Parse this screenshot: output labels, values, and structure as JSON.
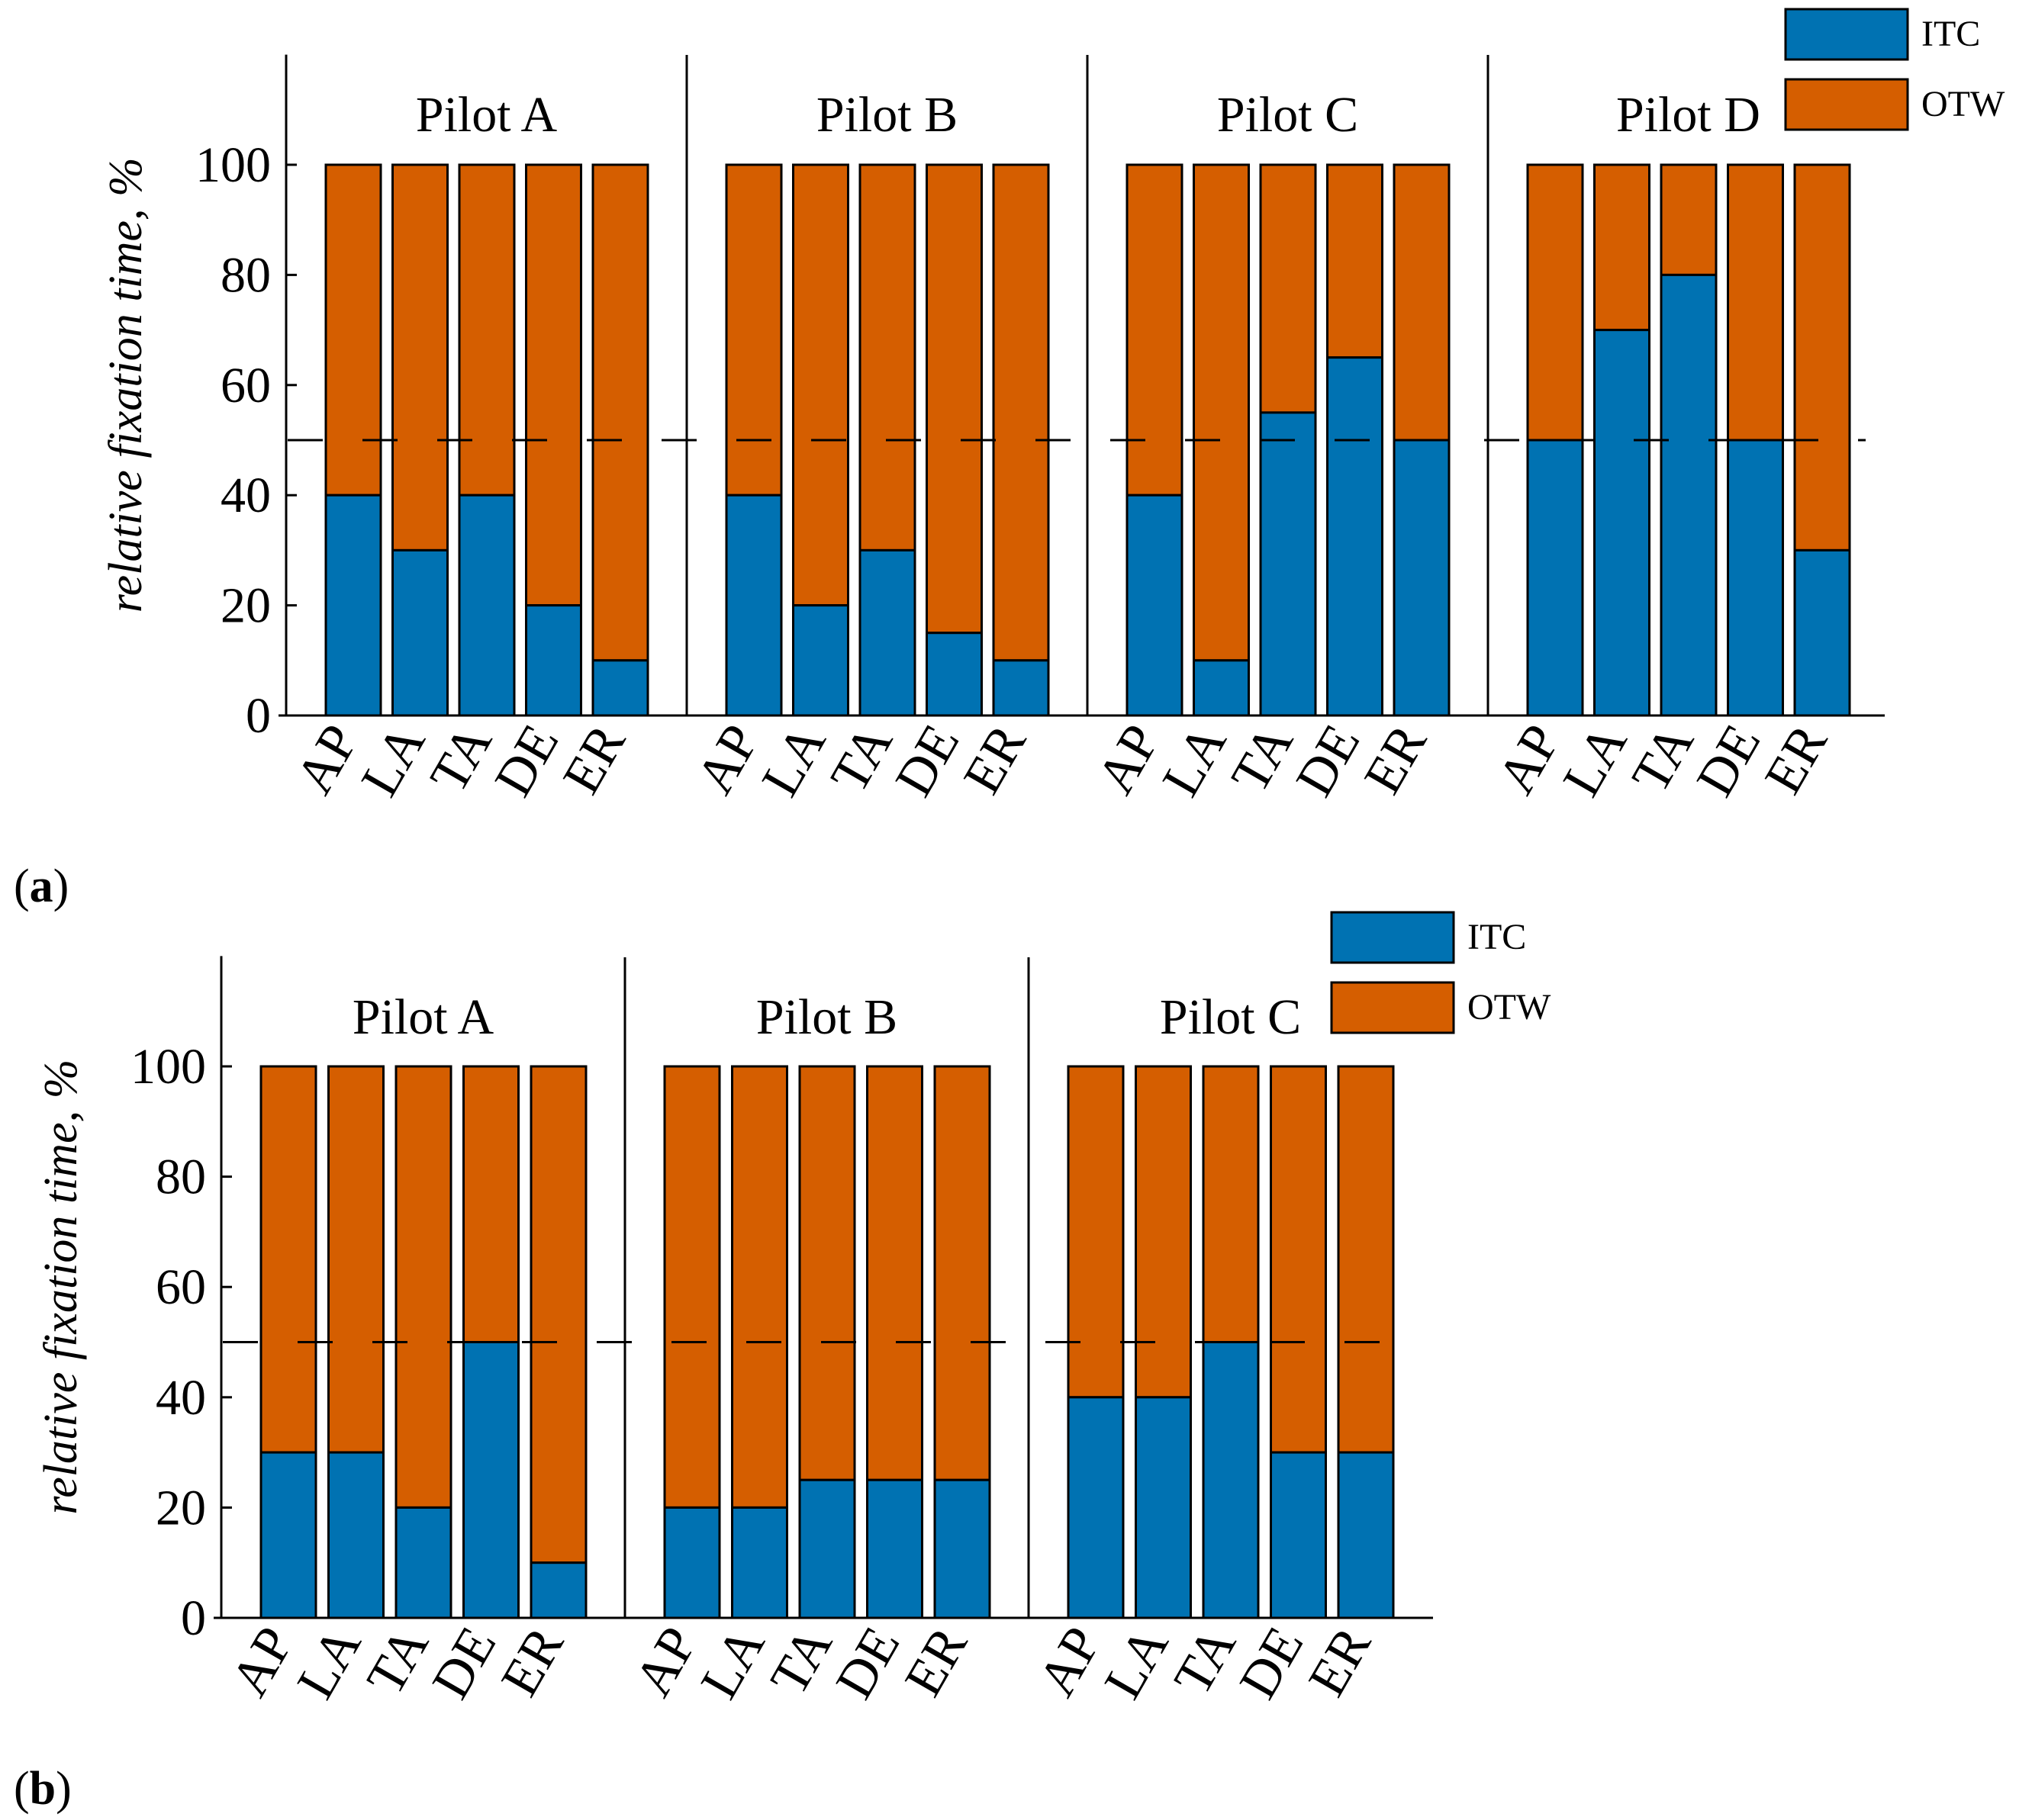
{
  "colors": {
    "itc": "#0072B2",
    "otw": "#D55E00",
    "axis": "#000000",
    "bar_edge": "#000000"
  },
  "chart_data": [
    {
      "id": "a",
      "panel_label": "a",
      "type": "bar",
      "stacked": true,
      "ylabel": "relative fixation time, %",
      "ylim": [
        0,
        120
      ],
      "yticks": [
        "0",
        "20",
        "40",
        "60",
        "80",
        "100"
      ],
      "reference_line": 50,
      "categories": [
        "AP",
        "LA",
        "TA",
        "DE",
        "ER"
      ],
      "legend": {
        "position": "top-right",
        "entries": [
          "ITC",
          "OTW"
        ]
      },
      "groups": [
        {
          "name": "Pilot A",
          "itc": [
            40,
            30,
            40,
            20,
            10
          ]
        },
        {
          "name": "Pilot B",
          "itc": [
            40,
            20,
            30,
            15,
            10
          ]
        },
        {
          "name": "Pilot C",
          "itc": [
            40,
            10,
            55,
            65,
            50
          ]
        },
        {
          "name": "Pilot D",
          "itc": [
            50,
            70,
            80,
            50,
            30
          ]
        }
      ],
      "total": 100
    },
    {
      "id": "b",
      "panel_label": "b",
      "type": "bar",
      "stacked": true,
      "ylabel": "relative fixation time, %",
      "ylim": [
        0,
        120
      ],
      "yticks": [
        "0",
        "20",
        "40",
        "60",
        "80",
        "100"
      ],
      "reference_line": 50,
      "categories": [
        "AP",
        "LA",
        "TA",
        "DE",
        "ER"
      ],
      "legend": {
        "position": "top-right",
        "entries": [
          "ITC",
          "OTW"
        ]
      },
      "groups": [
        {
          "name": "Pilot A",
          "itc": [
            30,
            30,
            20,
            50,
            10
          ]
        },
        {
          "name": "Pilot B",
          "itc": [
            20,
            20,
            25,
            25,
            25
          ]
        },
        {
          "name": "Pilot C",
          "itc": [
            40,
            40,
            50,
            30,
            30
          ]
        }
      ],
      "total": 100
    }
  ]
}
